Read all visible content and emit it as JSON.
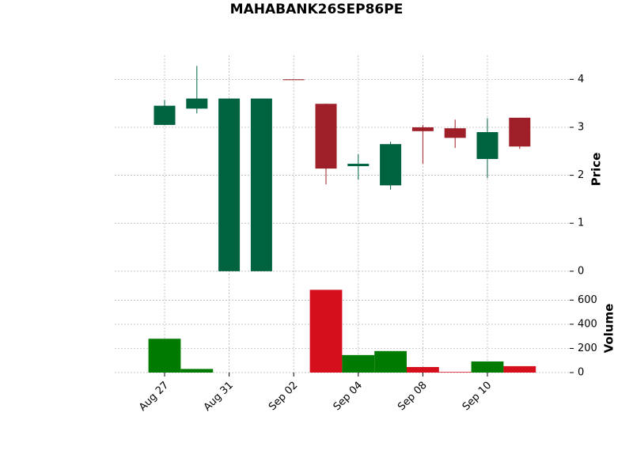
{
  "chart_data": {
    "type": "candlestick",
    "title": "MAHABANK26SEP86PE",
    "categories": [
      "Aug 27",
      null,
      "Aug 31",
      null,
      "Sep 02",
      null,
      "Sep 04",
      null,
      "Sep 08",
      null,
      "Sep 10",
      null
    ],
    "open": [
      3.05,
      3.39,
      0,
      0,
      4.0,
      3.49,
      2.19,
      1.79,
      3.0,
      2.98,
      2.34,
      3.2
    ],
    "high": [
      3.57,
      4.28,
      3.6,
      3.6,
      4.0,
      3.49,
      2.44,
      2.7,
      3.05,
      3.16,
      3.19,
      3.2
    ],
    "low": [
      3.05,
      3.29,
      0,
      0,
      4.0,
      1.81,
      1.91,
      1.7,
      2.24,
      2.57,
      1.94,
      2.55
    ],
    "close": [
      3.45,
      3.6,
      3.6,
      3.6,
      4.0,
      2.14,
      2.24,
      2.65,
      2.92,
      2.78,
      2.9,
      2.6
    ],
    "volume": [
      280,
      30,
      0,
      0,
      0,
      685,
      145,
      178,
      46,
      5,
      92,
      53
    ],
    "ylabel": "Price",
    "y2label": "Volume",
    "ylim": [
      -0.2,
      4.5
    ],
    "yticks": [
      0,
      1,
      2,
      3,
      4
    ],
    "y2lim": [
      0,
      740
    ],
    "y2ticks": [
      0,
      200,
      400,
      600
    ],
    "up_color": "#006340",
    "down_color": "#9e1f28",
    "volume_up_color": "#007a00",
    "volume_down_color": "#d50f1b",
    "grid": true
  }
}
